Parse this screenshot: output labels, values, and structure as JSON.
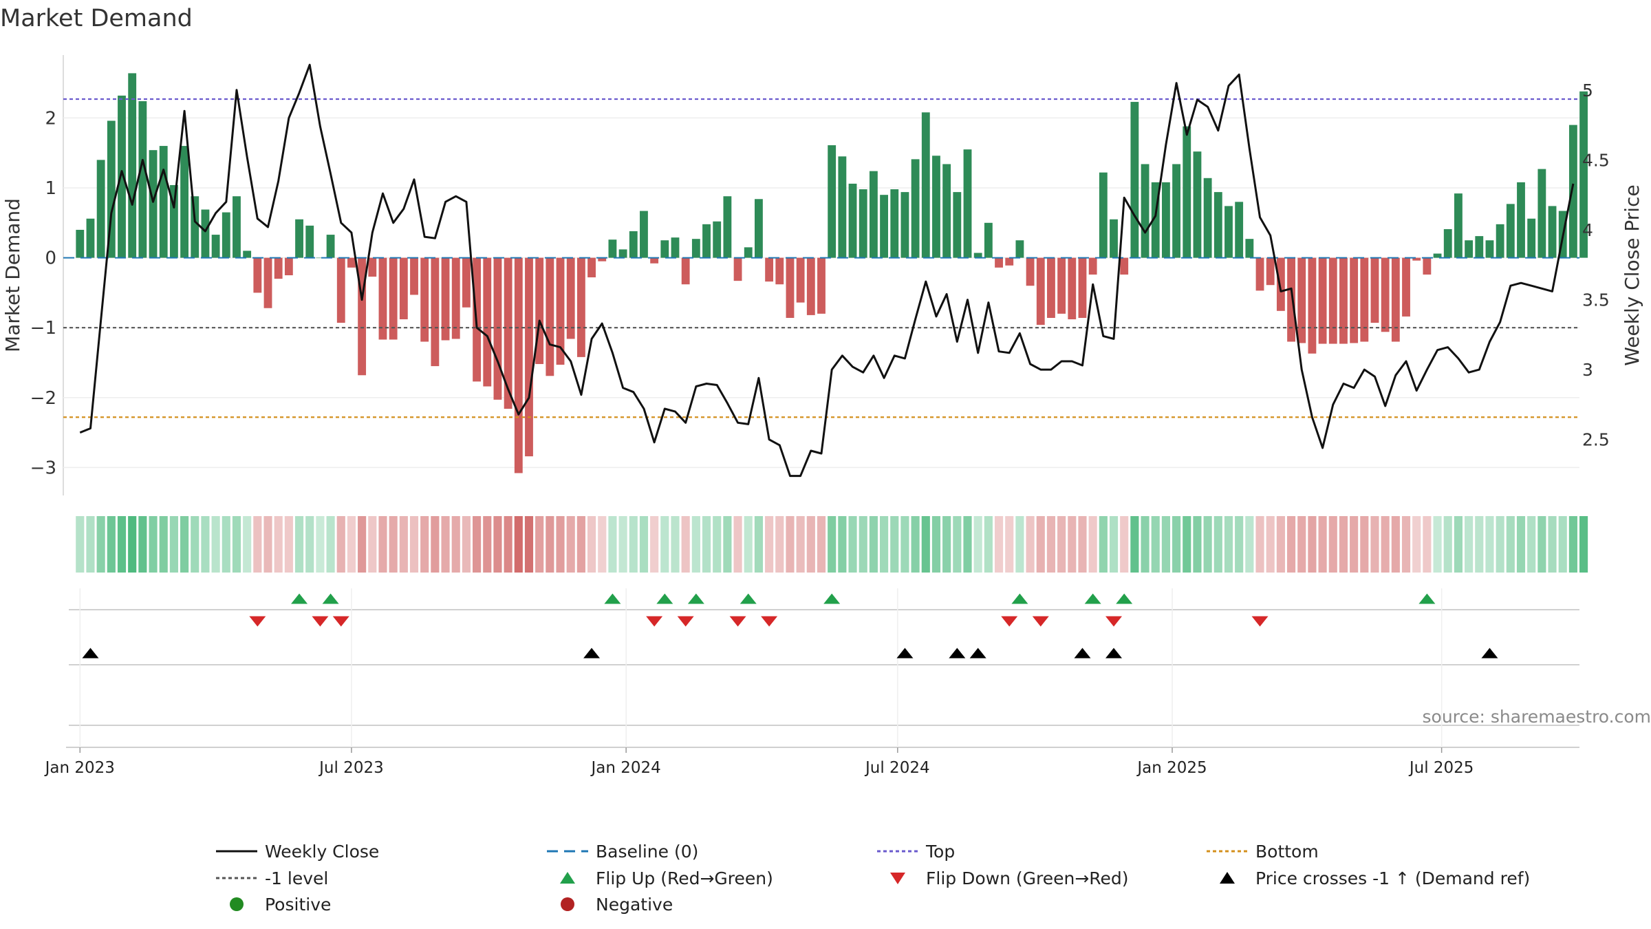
{
  "chart_data": {
    "type": "bar",
    "title": "Market Demand",
    "ylabel": "Market Demand",
    "y2label": "Weekly Close Price",
    "ylim": [
      -3.4,
      2.9
    ],
    "y2lim": [
      2.1,
      5.25
    ],
    "yticks": [
      -3,
      -2,
      -1,
      0,
      1,
      2
    ],
    "ytick_labels": [
      "−3",
      "−2",
      "−1",
      "0",
      "1",
      "2"
    ],
    "y2ticks": [
      2.5,
      3,
      3.5,
      4,
      4.5,
      5
    ],
    "y2tick_labels": [
      "2.5",
      "3",
      "3.5",
      "4",
      "4.5",
      "5"
    ],
    "x_range_weeks": [
      -1.6,
      143.6
    ],
    "xticks": [
      {
        "week": 0,
        "label": "Jan 2023"
      },
      {
        "week": 26,
        "label": "Jul 2023"
      },
      {
        "week": 52.3,
        "label": "Jan 2024"
      },
      {
        "week": 78.3,
        "label": "Jul 2024"
      },
      {
        "week": 104.6,
        "label": "Jan 2025"
      },
      {
        "week": 130.4,
        "label": "Jul 2025"
      }
    ],
    "levels": {
      "top": 2.27,
      "minus_one": -1.0,
      "bottom": -2.28,
      "baseline": 0
    },
    "demand_values": [
      0.4,
      0.56,
      1.4,
      1.96,
      2.32,
      2.64,
      2.24,
      1.54,
      1.6,
      1.04,
      1.6,
      0.88,
      0.69,
      0.33,
      0.65,
      0.88,
      0.1,
      -0.5,
      -0.72,
      -0.3,
      -0.25,
      0.55,
      0.46,
      0.0,
      0.33,
      -0.93,
      -0.14,
      -1.68,
      -0.27,
      -1.17,
      -1.17,
      -0.88,
      -0.53,
      -1.2,
      -1.55,
      -1.18,
      -1.16,
      -0.71,
      -1.77,
      -1.84,
      -2.03,
      -2.16,
      -3.08,
      -2.84,
      -1.52,
      -1.69,
      -1.53,
      -1.16,
      -1.42,
      -0.28,
      -0.05,
      0.26,
      0.12,
      0.38,
      0.67,
      -0.08,
      0.25,
      0.29,
      -0.38,
      0.27,
      0.48,
      0.52,
      0.88,
      -0.33,
      0.15,
      0.84,
      -0.34,
      -0.38,
      -0.86,
      -0.64,
      -0.82,
      -0.8,
      1.61,
      1.45,
      1.06,
      0.98,
      1.24,
      0.9,
      0.98,
      0.94,
      1.41,
      2.08,
      1.46,
      1.34,
      0.94,
      1.55,
      0.07,
      0.5,
      -0.14,
      -0.11,
      0.25,
      -0.4,
      -0.96,
      -0.86,
      -0.8,
      -0.88,
      -0.86,
      -0.24,
      1.22,
      0.55,
      -0.24,
      2.23,
      1.34,
      1.08,
      1.08,
      1.34,
      1.88,
      1.52,
      1.14,
      0.94,
      0.74,
      0.8,
      0.27,
      -0.47,
      -0.39,
      -0.76,
      -1.2,
      -1.22,
      -1.37,
      -1.23,
      -1.23,
      -1.23,
      -1.22,
      -1.2,
      -0.93,
      -1.06,
      -1.2,
      -0.84,
      -0.04,
      -0.24,
      0.06,
      0.41,
      0.92,
      0.25,
      0.31,
      0.25,
      0.48,
      0.77,
      1.08,
      0.56,
      1.27,
      0.74,
      0.67,
      1.9,
      2.38
    ],
    "series": [
      {
        "name": "Weekly Close",
        "values": [
          2.55,
          2.58,
          3.35,
          4.12,
          4.42,
          4.18,
          4.5,
          4.2,
          4.43,
          4.16,
          4.85,
          4.06,
          3.99,
          4.12,
          4.2,
          5.0,
          4.52,
          4.08,
          4.02,
          4.35,
          4.8,
          4.98,
          5.18,
          4.74,
          4.4,
          4.05,
          3.98,
          3.5,
          3.98,
          4.26,
          4.05,
          4.15,
          4.36,
          3.95,
          3.94,
          4.2,
          4.24,
          4.2,
          3.3,
          3.24,
          3.06,
          2.86,
          2.68,
          2.8,
          3.35,
          3.18,
          3.16,
          3.06,
          2.82,
          3.22,
          3.33,
          3.12,
          2.87,
          2.84,
          2.72,
          2.48,
          2.72,
          2.7,
          2.62,
          2.88,
          2.9,
          2.89,
          2.76,
          2.62,
          2.61,
          2.94,
          2.5,
          2.46,
          2.24,
          2.24,
          2.42,
          2.4,
          3.0,
          3.1,
          3.02,
          2.98,
          3.1,
          2.94,
          3.1,
          3.08,
          3.36,
          3.63,
          3.38,
          3.54,
          3.2,
          3.5,
          3.12,
          3.48,
          3.13,
          3.12,
          3.26,
          3.04,
          3.0,
          3.0,
          3.06,
          3.06,
          3.03,
          3.61,
          3.24,
          3.22,
          4.23,
          4.1,
          3.98,
          4.1,
          4.61,
          5.05,
          4.68,
          4.93,
          4.88,
          4.71,
          5.03,
          5.11,
          4.58,
          4.09,
          3.96,
          3.56,
          3.58,
          3.0,
          2.66,
          2.44,
          2.75,
          2.9,
          2.87,
          3.0,
          2.95,
          2.74,
          2.96,
          3.06,
          2.85,
          3.0,
          3.14,
          3.16,
          3.08,
          2.98,
          3.0,
          3.2,
          3.34,
          3.6,
          3.62,
          3.6,
          3.58,
          3.56,
          3.95,
          4.33
        ]
      }
    ],
    "flip_up_weeks": [
      21,
      24,
      51,
      56,
      59,
      64,
      72,
      90,
      97,
      100,
      129
    ],
    "flip_down_weeks": [
      17,
      23,
      25,
      55,
      58,
      63,
      66,
      89,
      92,
      99,
      113
    ],
    "price_cross_weeks": [
      1,
      49,
      79,
      84,
      86,
      96,
      99,
      135
    ],
    "legend_position": "bottom",
    "legend": [
      {
        "label": "Weekly Close",
        "kind": "line",
        "color": "#111111"
      },
      {
        "label": "Baseline (0)",
        "kind": "dash",
        "color": "#1f77b4"
      },
      {
        "label": "Top",
        "kind": "dot",
        "color": "#6a5acd"
      },
      {
        "label": "Bottom",
        "kind": "dot",
        "color": "#d4901e"
      },
      {
        "label": "-1 level",
        "kind": "dot",
        "color": "#555555"
      },
      {
        "label": "Flip Up (Red→Green)",
        "kind": "tri-up",
        "color": "#22a04b"
      },
      {
        "label": "Flip Down (Green→Red)",
        "kind": "tri-down",
        "color": "#d62728"
      },
      {
        "label": "Price crosses -1 ↑ (Demand ref)",
        "kind": "tri-up",
        "color": "#000000"
      },
      {
        "label": "Positive",
        "kind": "circle",
        "color": "#228b22"
      },
      {
        "label": "Negative",
        "kind": "circle",
        "color": "#b22222"
      }
    ],
    "source": "source: sharemaestro.com",
    "colors": {
      "positive": "#2e8b57",
      "negative": "#cd5c5c",
      "line": "#111111",
      "top": "#6a5acd",
      "bottom": "#d4901e",
      "minus_one": "#555555",
      "baseline": "#1f77b4",
      "flip_up": "#22a04b",
      "flip_down": "#d62728",
      "cross": "#000000"
    }
  }
}
